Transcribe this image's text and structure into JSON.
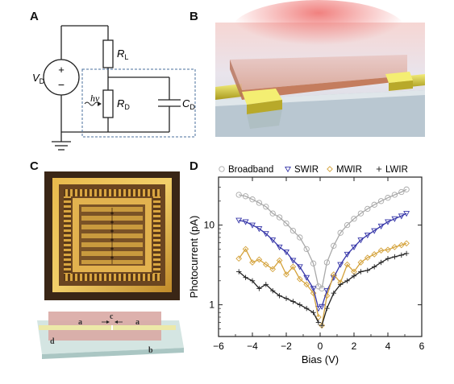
{
  "panels": {
    "a": {
      "letter": "A"
    },
    "b": {
      "letter": "B"
    },
    "c": {
      "letter": "C"
    },
    "d": {
      "letter": "D"
    }
  },
  "circuit": {
    "vd_main": "V",
    "vd_sub": "D",
    "rl_main": "R",
    "rl_sub": "L",
    "rd_main": "R",
    "rd_sub": "D",
    "cd_main": "C",
    "cd_sub": "D",
    "hv": "hν",
    "plus": "+",
    "minus": "−"
  },
  "device_labels": {
    "a_left": "a",
    "a_right": "a",
    "c": "c",
    "d": "d",
    "b": "b"
  },
  "colors": {
    "broadband": "#a9a9a9",
    "swir": "#3535a8",
    "mwir": "#d4a23a",
    "lwir": "#222222"
  },
  "chart_data": {
    "type": "scatter",
    "xlabel": "Bias (V)",
    "ylabel": "Photocurrent (pA)",
    "xlim": [
      -6,
      6
    ],
    "ylim": [
      0.4,
      40
    ],
    "yscale": "log",
    "xticks": [
      "−6",
      "−4",
      "−2",
      "0",
      "2",
      "4",
      "6"
    ],
    "yticks": [
      "1",
      "10"
    ],
    "legend_position": "top",
    "series": [
      {
        "name": "Broadband",
        "marker": "circle",
        "x": [
          -4.8,
          -4.4,
          -4.0,
          -3.6,
          -3.2,
          -2.8,
          -2.4,
          -2.0,
          -1.6,
          -1.2,
          -0.8,
          -0.4,
          -0.1,
          0.1,
          0.4,
          0.8,
          1.2,
          1.6,
          2.0,
          2.4,
          2.8,
          3.2,
          3.6,
          4.0,
          4.4,
          4.8,
          5.1
        ],
        "y": [
          24,
          23,
          21,
          19,
          17,
          14,
          12.5,
          10.5,
          8.5,
          7,
          5,
          3.3,
          1.7,
          1.6,
          3.4,
          5.5,
          8,
          10,
          12,
          14,
          16,
          18,
          20,
          22,
          24,
          26,
          28
        ]
      },
      {
        "name": "SWIR",
        "marker": "triangle",
        "x": [
          -4.8,
          -4.4,
          -4.0,
          -3.6,
          -3.2,
          -2.8,
          -2.4,
          -2.0,
          -1.6,
          -1.2,
          -0.8,
          -0.4,
          -0.1,
          0.1,
          0.4,
          0.8,
          1.2,
          1.6,
          2.0,
          2.4,
          2.8,
          3.2,
          3.6,
          4.0,
          4.4,
          4.8,
          5.1
        ],
        "y": [
          11.5,
          11,
          10,
          9,
          7.8,
          6.5,
          5.3,
          4.6,
          3.6,
          3,
          2.2,
          1.6,
          0.9,
          0.95,
          1.5,
          2.2,
          3.2,
          4.3,
          5.3,
          6.5,
          7.5,
          8.5,
          9.7,
          11,
          12,
          13,
          14
        ]
      },
      {
        "name": "MWIR",
        "marker": "diamond",
        "x": [
          -4.8,
          -4.4,
          -4.0,
          -3.6,
          -3.2,
          -2.8,
          -2.4,
          -2.0,
          -1.6,
          -1.2,
          -0.8,
          -0.4,
          -0.1,
          0.1,
          0.4,
          0.8,
          1.2,
          1.6,
          2.0,
          2.4,
          2.8,
          3.2,
          3.6,
          4.0,
          4.4,
          4.8,
          5.1
        ],
        "y": [
          3.8,
          5,
          3.4,
          3.7,
          3.2,
          2.8,
          3.6,
          2.4,
          3,
          2.1,
          1.8,
          1.4,
          0.7,
          0.55,
          1.3,
          2.4,
          1.9,
          3.2,
          2.6,
          3.4,
          3.9,
          4.3,
          4.8,
          4.9,
          5.3,
          5.6,
          5.9
        ]
      },
      {
        "name": "LWIR",
        "marker": "plus",
        "x": [
          -4.8,
          -4.4,
          -4.0,
          -3.6,
          -3.2,
          -2.8,
          -2.4,
          -2.0,
          -1.6,
          -1.2,
          -0.8,
          -0.4,
          -0.1,
          0.1,
          0.4,
          0.8,
          1.2,
          1.6,
          2.0,
          2.4,
          2.8,
          3.2,
          3.6,
          4.0,
          4.4,
          4.8,
          5.1
        ],
        "y": [
          2.6,
          2.2,
          2.0,
          1.6,
          1.8,
          1.5,
          1.3,
          1.2,
          1.1,
          1.0,
          0.9,
          0.8,
          0.6,
          0.55,
          0.9,
          1.4,
          1.8,
          2.0,
          2.3,
          2.6,
          2.7,
          3.0,
          3.4,
          3.8,
          4.0,
          4.2,
          4.4
        ]
      }
    ]
  }
}
